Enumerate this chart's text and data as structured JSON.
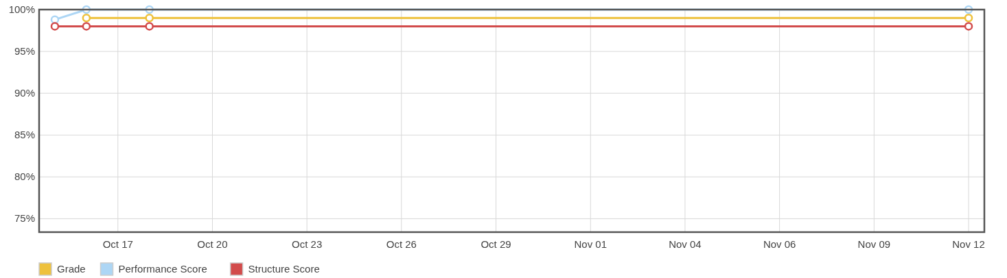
{
  "chart_data": {
    "type": "line",
    "ylim": [
      73.4,
      100
    ],
    "categories": [
      null,
      null,
      "Oct 17",
      null,
      null,
      "Oct 20",
      null,
      null,
      "Oct 23",
      null,
      null,
      "Oct 26",
      null,
      null,
      "Oct 29",
      null,
      null,
      "Nov 01",
      null,
      null,
      "Nov 04",
      null,
      null,
      "Nov 06",
      null,
      null,
      "Nov 09",
      null,
      null,
      "Nov 12"
    ],
    "yticks": [
      {
        "value": 75,
        "label": "75%"
      },
      {
        "value": 80,
        "label": "80%"
      },
      {
        "value": 85,
        "label": "85%"
      },
      {
        "value": 90,
        "label": "90%"
      },
      {
        "value": 95,
        "label": "95%"
      },
      {
        "value": 100,
        "label": "100%"
      }
    ],
    "series": [
      {
        "name": "Grade",
        "color": "#eec13c",
        "values": [
          null,
          99,
          null,
          99,
          null,
          null,
          null,
          null,
          null,
          null,
          null,
          null,
          null,
          null,
          null,
          null,
          null,
          null,
          null,
          null,
          null,
          null,
          null,
          null,
          null,
          null,
          null,
          null,
          null,
          99
        ]
      },
      {
        "name": "Performance Score",
        "color": "#add6f5",
        "values": [
          98.8,
          100,
          null,
          100,
          null,
          null,
          null,
          null,
          null,
          null,
          null,
          null,
          null,
          null,
          null,
          null,
          null,
          null,
          null,
          null,
          null,
          null,
          null,
          null,
          null,
          null,
          null,
          null,
          null,
          100
        ]
      },
      {
        "name": "Structure Score",
        "color": "#d24b4b",
        "values": [
          98,
          98,
          null,
          98,
          null,
          null,
          null,
          null,
          null,
          null,
          null,
          null,
          null,
          null,
          null,
          null,
          null,
          null,
          null,
          null,
          null,
          null,
          null,
          null,
          null,
          null,
          null,
          null,
          null,
          98
        ]
      }
    ],
    "grid": true,
    "legend": "bottom left",
    "marker": "circle",
    "line_style": "solid"
  }
}
